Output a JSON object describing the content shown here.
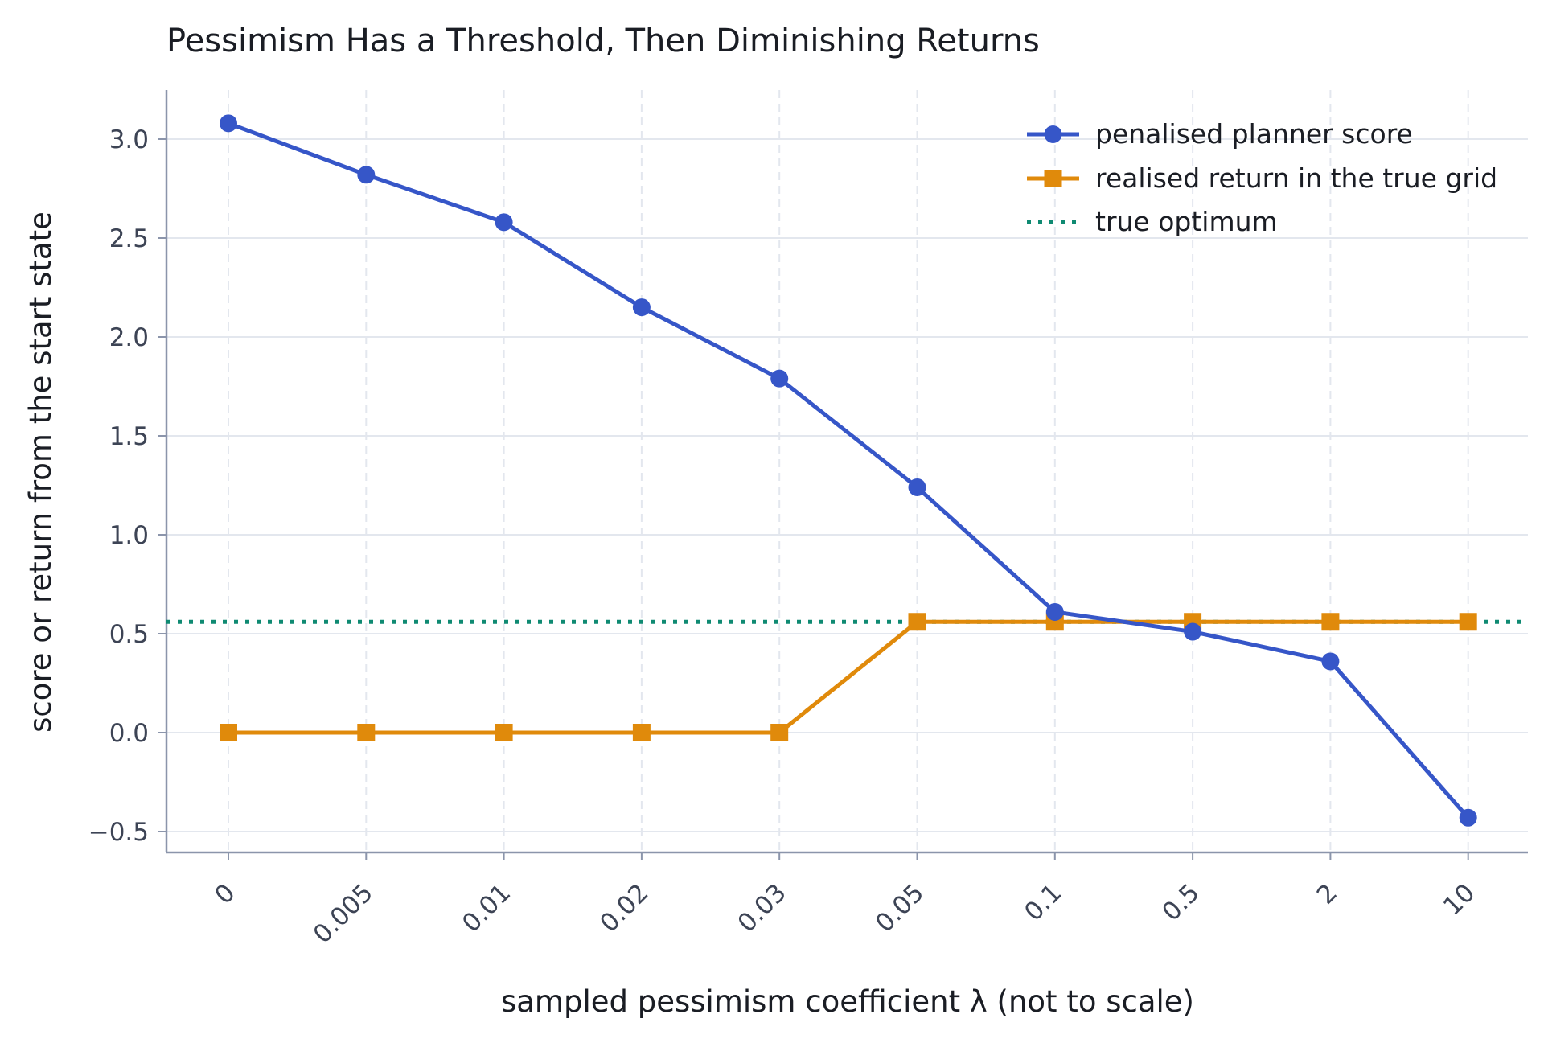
{
  "chart_data": {
    "type": "line",
    "title": "Pessimism Has a Threshold, Then Diminishing Returns",
    "xlabel": "sampled pessimism coefficient λ (not to scale)",
    "ylabel": "score or return from the start state",
    "categories": [
      "0",
      "0.005",
      "0.01",
      "0.02",
      "0.03",
      "0.05",
      "0.1",
      "0.5",
      "2",
      "10"
    ],
    "yticks": [
      "−0.5",
      "0.0",
      "0.5",
      "1.0",
      "1.5",
      "2.0",
      "2.5",
      "3.0"
    ],
    "ylim": [
      -0.6,
      3.25
    ],
    "grid": true,
    "legend_position": "top-right",
    "series": [
      {
        "name": "penalised planner score",
        "color": "#3656c8",
        "marker": "circle",
        "values": [
          3.08,
          2.82,
          2.58,
          2.15,
          1.79,
          1.24,
          0.61,
          0.51,
          0.36,
          -0.43
        ]
      },
      {
        "name": "realised return in the true grid",
        "color": "#e08a0b",
        "marker": "square",
        "values": [
          0.0,
          0.0,
          0.0,
          0.0,
          0.0,
          0.56,
          0.56,
          0.56,
          0.56,
          0.56
        ]
      }
    ],
    "reference_lines": [
      {
        "name": "true optimum",
        "color": "#0f8a72",
        "style": "dotted",
        "y": 0.56
      }
    ]
  }
}
